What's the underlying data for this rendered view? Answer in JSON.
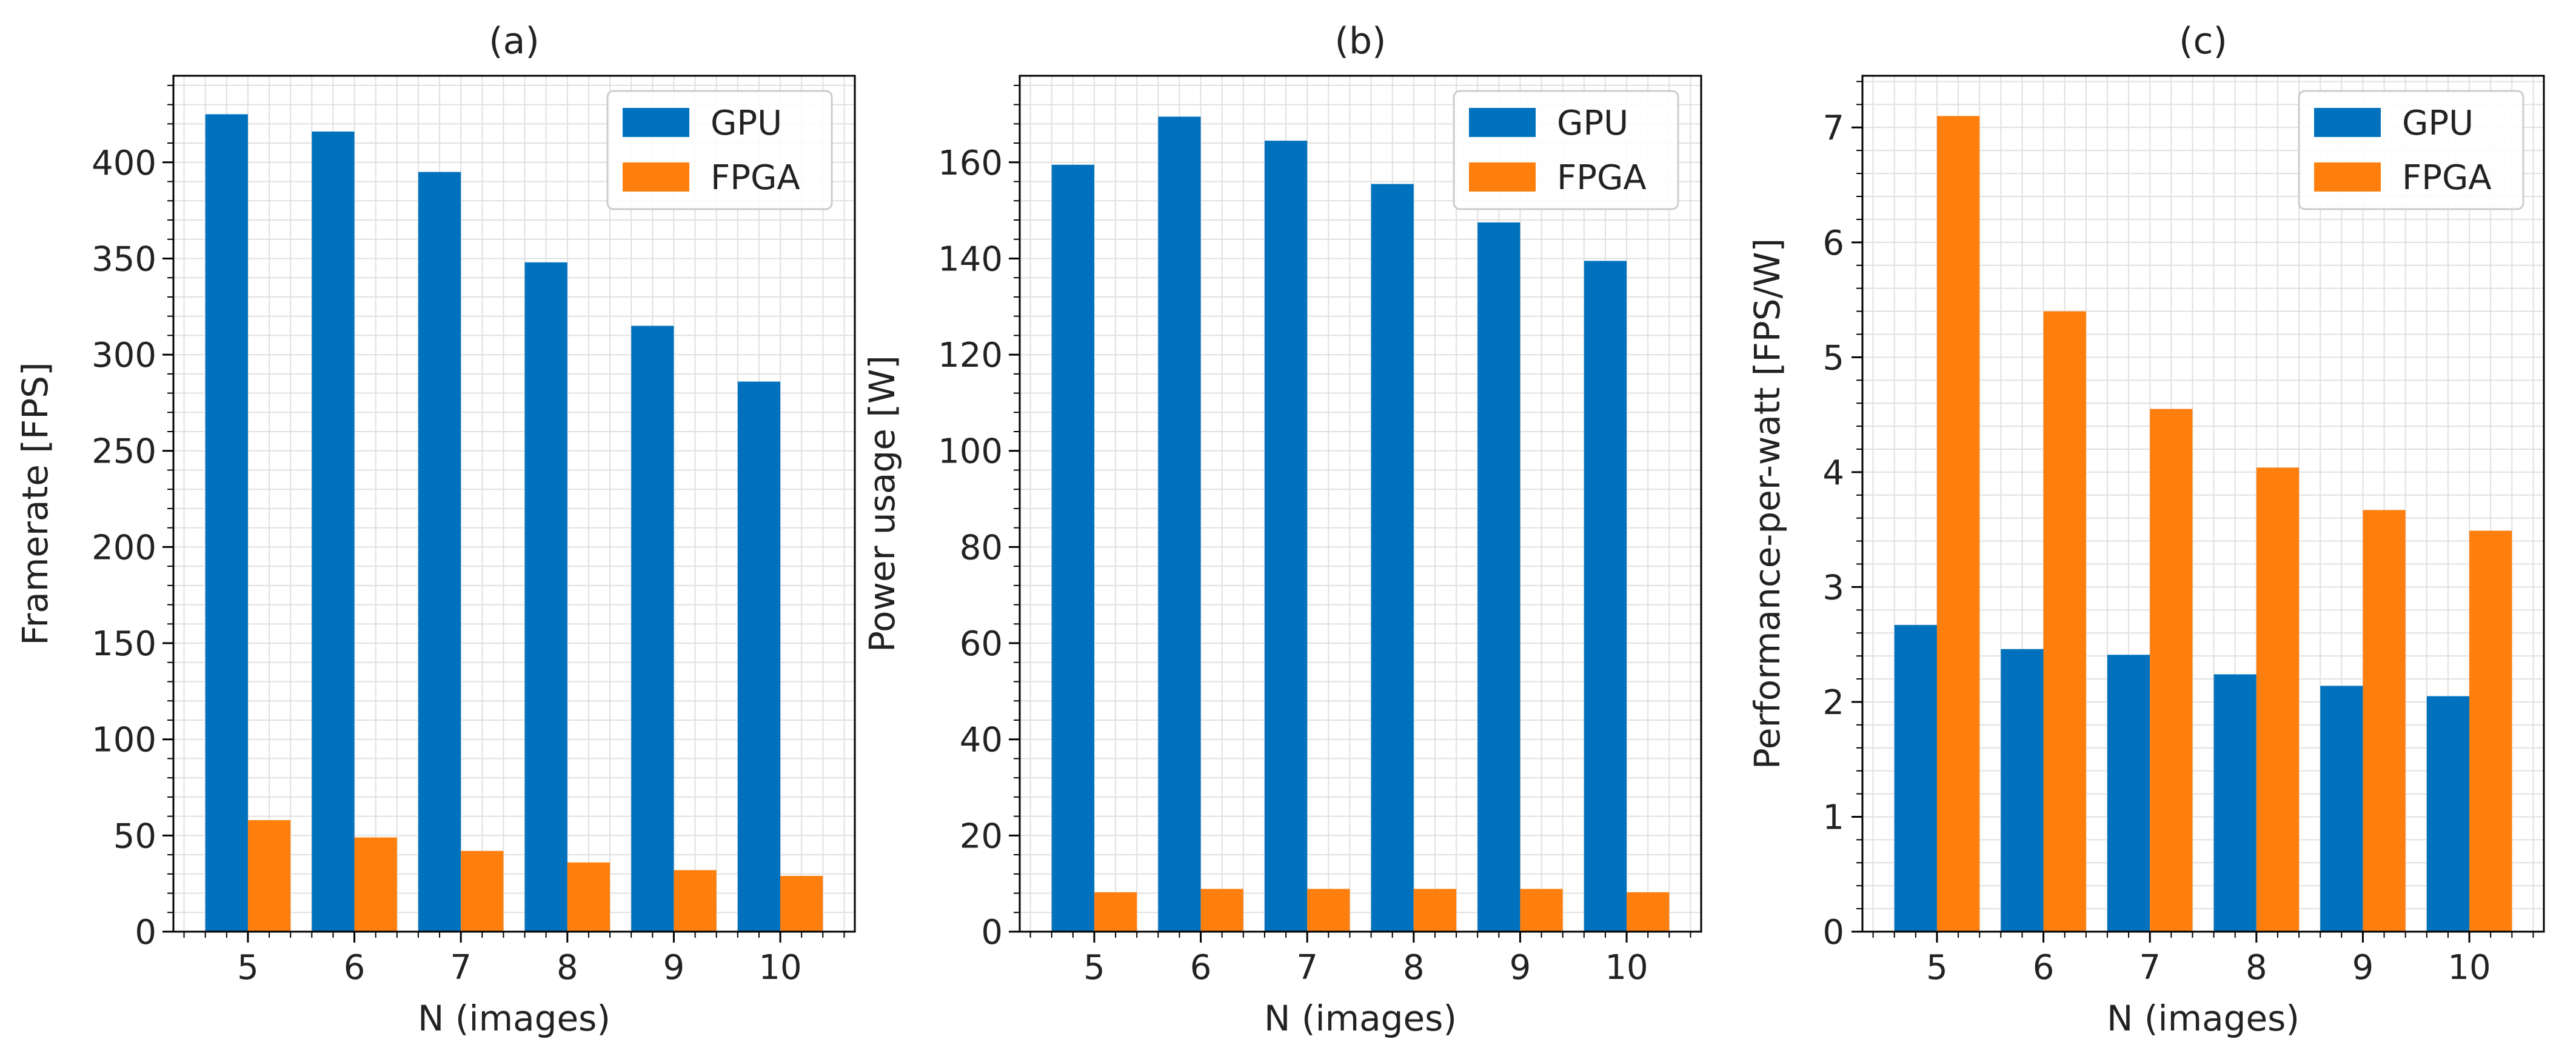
{
  "figure": {
    "x_label": "N (images)"
  },
  "chart_data": [
    {
      "type": "bar",
      "title": "(a)",
      "xlabel": "N (images)",
      "ylabel": "Framerate [FPS]",
      "categories": [
        "5",
        "6",
        "7",
        "8",
        "9",
        "10"
      ],
      "series": [
        {
          "name": "GPU",
          "values": [
            425,
            416,
            395,
            348,
            315,
            286
          ]
        },
        {
          "name": "FPGA",
          "values": [
            58,
            49,
            42,
            36,
            32,
            29
          ]
        }
      ],
      "ylim": [
        0,
        445
      ],
      "yticks": [
        0,
        50,
        100,
        150,
        200,
        250,
        300,
        350,
        400
      ],
      "ytick_labels": [
        "0",
        "50",
        "100",
        "150",
        "200",
        "250",
        "300",
        "350",
        "400"
      ],
      "legend": "top-right",
      "grid": true
    },
    {
      "type": "bar",
      "title": "(b)",
      "xlabel": "N (images)",
      "ylabel": "Power usage [W]",
      "categories": [
        "5",
        "6",
        "7",
        "8",
        "9",
        "10"
      ],
      "series": [
        {
          "name": "GPU",
          "values": [
            159.5,
            169.5,
            164.5,
            155.5,
            147.5,
            139.5
          ]
        },
        {
          "name": "FPGA",
          "values": [
            8.2,
            8.9,
            8.9,
            8.9,
            8.9,
            8.2
          ]
        }
      ],
      "ylim": [
        0,
        178
      ],
      "yticks": [
        0,
        20,
        40,
        60,
        80,
        100,
        120,
        140,
        160
      ],
      "ytick_labels": [
        "0",
        "20",
        "40",
        "60",
        "80",
        "100",
        "120",
        "140",
        "160"
      ],
      "legend": "top-right",
      "grid": true
    },
    {
      "type": "bar",
      "title": "(c)",
      "xlabel": "N (images)",
      "ylabel": "Performance-per-watt [FPS/W]",
      "categories": [
        "5",
        "6",
        "7",
        "8",
        "9",
        "10"
      ],
      "series": [
        {
          "name": "GPU",
          "values": [
            2.67,
            2.46,
            2.41,
            2.24,
            2.14,
            2.05
          ]
        },
        {
          "name": "FPGA",
          "values": [
            7.1,
            5.4,
            4.55,
            4.04,
            3.67,
            3.49
          ]
        }
      ],
      "ylim": [
        0,
        7.45
      ],
      "yticks": [
        0,
        1,
        2,
        3,
        4,
        5,
        6,
        7
      ],
      "ytick_labels": [
        "0",
        "1",
        "2",
        "3",
        "4",
        "5",
        "6",
        "7"
      ],
      "legend": "top-right",
      "grid": true
    }
  ],
  "colors": {
    "gpu": "#0072bd",
    "fpga": "#ff7f0e",
    "grid": "#e0e0e0",
    "axis": "#000000"
  }
}
